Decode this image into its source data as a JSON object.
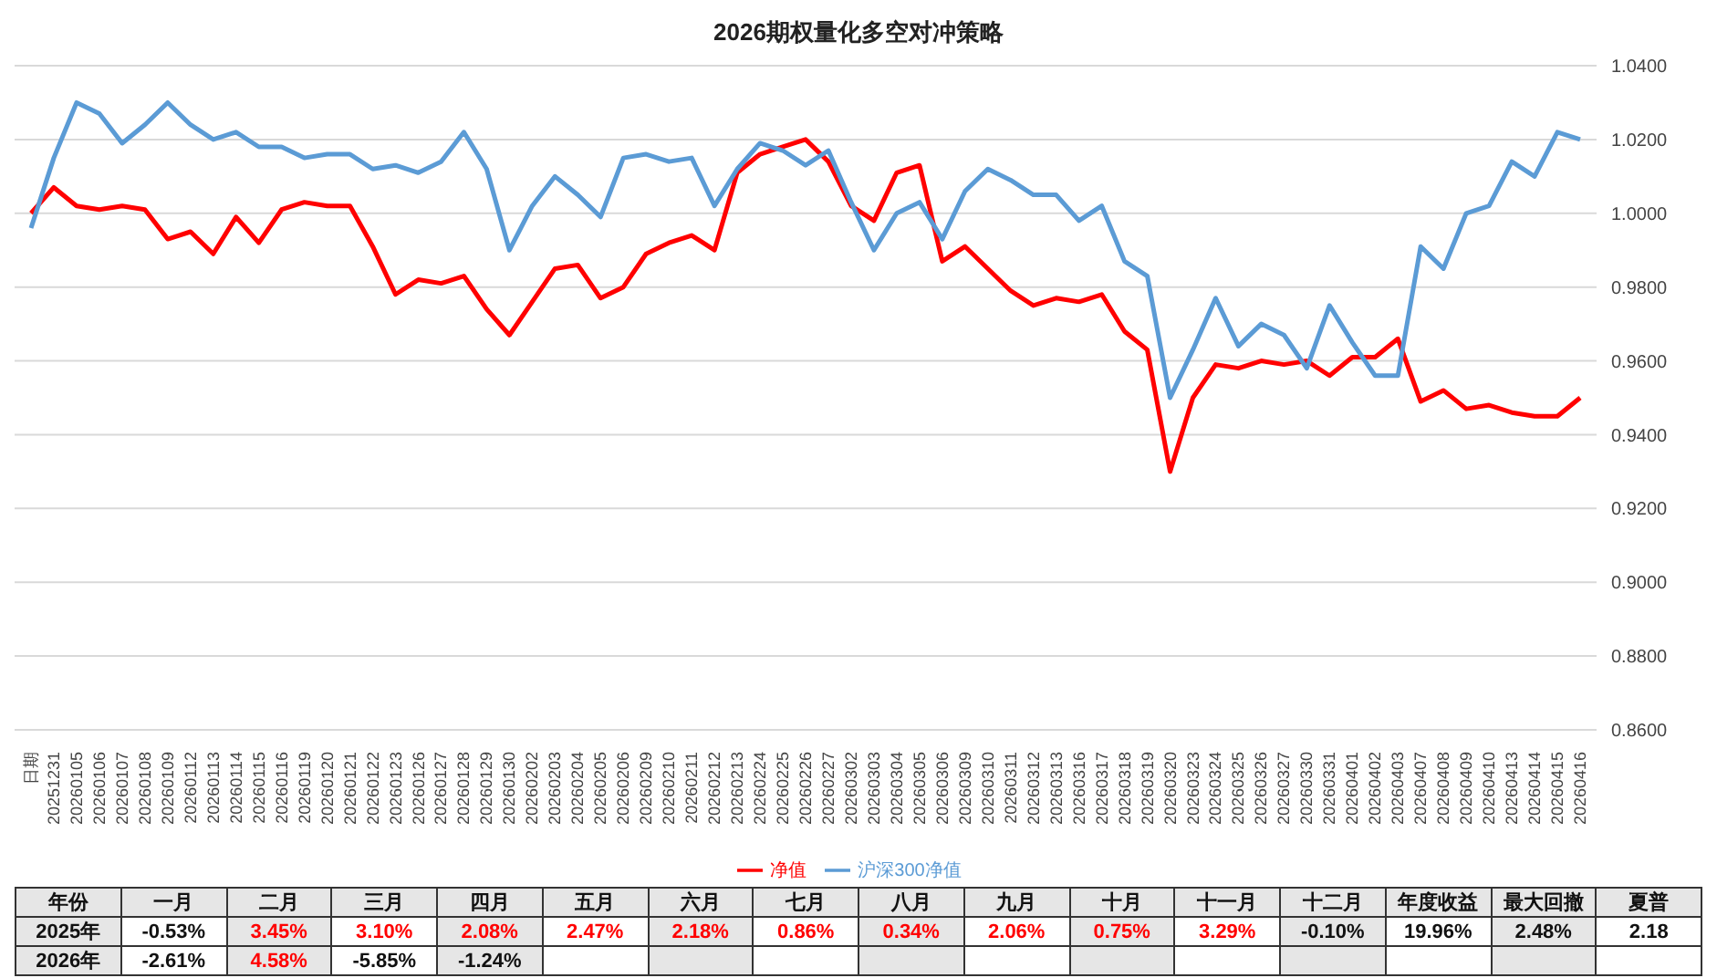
{
  "chart_data": {
    "type": "line",
    "title": "2026期权量化多空对冲策略",
    "categories": [
      "日期",
      "20251231",
      "20260105",
      "20260106",
      "20260107",
      "20260108",
      "20260109",
      "20260112",
      "20260113",
      "20260114",
      "20260115",
      "20260116",
      "20260119",
      "20260120",
      "20260121",
      "20260122",
      "20260123",
      "20260126",
      "20260127",
      "20260128",
      "20260129",
      "20260130",
      "20260202",
      "20260203",
      "20260204",
      "20260205",
      "20260206",
      "20260209",
      "20260210",
      "20260211",
      "20260212",
      "20260213",
      "20260224",
      "20260225",
      "20260226",
      "20260227",
      "20260302",
      "20260303",
      "20260304",
      "20260305",
      "20260306",
      "20260309",
      "20260310",
      "20260311",
      "20260312",
      "20260313",
      "20260316",
      "20260317",
      "20260318",
      "20260319",
      "20260320",
      "20260323",
      "20260324",
      "20260325",
      "20260326",
      "20260327",
      "20260330",
      "20260331",
      "20260401",
      "20260402",
      "20260403",
      "20260407",
      "20260408",
      "20260409",
      "20260410",
      "20260413",
      "20260414",
      "20260415",
      "20260416"
    ],
    "series": [
      {
        "name": "净值",
        "color": "#ff0000",
        "values": [
          1.0,
          1.007,
          1.002,
          1.001,
          1.002,
          1.001,
          0.993,
          0.995,
          0.989,
          0.999,
          0.992,
          1.001,
          1.003,
          1.002,
          1.002,
          0.991,
          0.978,
          0.982,
          0.981,
          0.983,
          0.974,
          0.967,
          0.976,
          0.985,
          0.986,
          0.977,
          0.98,
          0.989,
          0.992,
          0.994,
          0.99,
          1.011,
          1.016,
          1.018,
          1.02,
          1.014,
          1.002,
          0.998,
          1.011,
          1.013,
          0.987,
          0.991,
          0.985,
          0.979,
          0.975,
          0.977,
          0.976,
          0.978,
          0.968,
          0.963,
          0.93,
          0.95,
          0.959,
          0.958,
          0.96,
          0.959,
          0.96,
          0.956,
          0.961,
          0.961,
          0.966,
          0.949,
          0.952,
          0.947,
          0.948,
          0.946,
          0.945,
          0.945,
          0.95
        ]
      },
      {
        "name": "沪深300净值",
        "color": "#5b9bd5",
        "values": [
          0.996,
          1.015,
          1.03,
          1.027,
          1.019,
          1.024,
          1.03,
          1.024,
          1.02,
          1.022,
          1.018,
          1.018,
          1.015,
          1.016,
          1.016,
          1.012,
          1.013,
          1.011,
          1.014,
          1.022,
          1.012,
          0.99,
          1.002,
          1.01,
          1.005,
          0.999,
          1.015,
          1.016,
          1.014,
          1.015,
          1.002,
          1.012,
          1.019,
          1.017,
          1.013,
          1.017,
          1.003,
          0.99,
          1.0,
          1.003,
          0.993,
          1.006,
          1.012,
          1.009,
          1.005,
          1.005,
          0.998,
          1.002,
          0.987,
          0.983,
          0.95,
          0.963,
          0.977,
          0.964,
          0.97,
          0.967,
          0.958,
          0.975,
          0.965,
          0.956,
          0.956,
          0.991,
          0.985,
          1.0,
          1.002,
          1.014,
          1.01,
          1.022,
          1.02
        ]
      }
    ],
    "ylim": [
      0.86,
      1.04
    ],
    "yticks": [
      {
        "value": 0.86,
        "label": "0.8600"
      },
      {
        "value": 0.88,
        "label": "0.8800"
      },
      {
        "value": 0.9,
        "label": "0.9000"
      },
      {
        "value": 0.92,
        "label": "0.9200"
      },
      {
        "value": 0.94,
        "label": "0.9400"
      },
      {
        "value": 0.96,
        "label": "0.9600"
      },
      {
        "value": 0.98,
        "label": "0.9800"
      },
      {
        "value": 1.0,
        "label": "1.0000"
      },
      {
        "value": 1.02,
        "label": "1.0200"
      },
      {
        "value": 1.04,
        "label": "1.0400"
      }
    ],
    "grid": "y",
    "legend": "bottom",
    "marker": "none",
    "line_style": "solid",
    "annotations": [
      "年份",
      "一月",
      "二月",
      "三月",
      "四月",
      "五月",
      "六月",
      "七月",
      "八月",
      "九月",
      "十月",
      "十一月",
      "十二月",
      "年度收益",
      "最大回撤",
      "夏普",
      "2025年",
      "-0.53%",
      "3.45%",
      "3.10%",
      "2.08%",
      "2.47%",
      "2.18%",
      "0.86%",
      "0.34%",
      "2.06%",
      "0.75%",
      "3.29%",
      "-0.10%",
      "19.96%",
      "2.48%",
      "2.18",
      "2026年",
      "-2.61%",
      "4.58%",
      "-5.85%",
      "-1.24%"
    ]
  }
}
